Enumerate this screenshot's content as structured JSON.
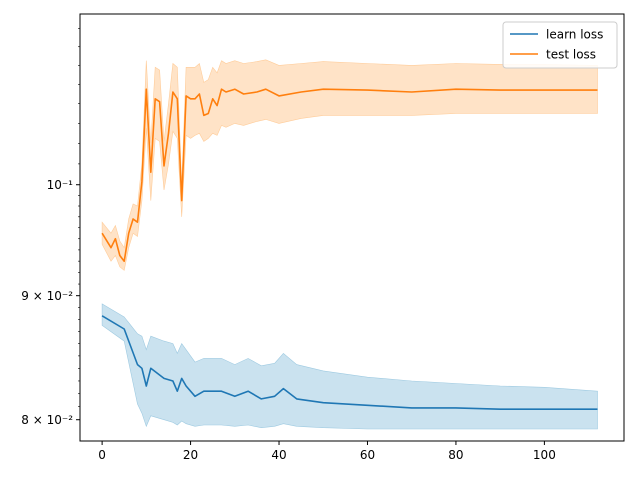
{
  "chart_data": {
    "type": "line",
    "title": "",
    "xlabel": "",
    "ylabel": "",
    "y_scale": "log",
    "xlim": [
      -5,
      118
    ],
    "ylim": [
      0.0784,
      0.1176
    ],
    "x_ticks": [
      0,
      20,
      40,
      60,
      80,
      100
    ],
    "x_tick_labels": [
      "0",
      "20",
      "40",
      "60",
      "80",
      "100"
    ],
    "y_ticks": [
      0.08,
      0.09,
      0.1
    ],
    "y_tick_labels": [
      "8 × 10⁻²",
      "9 × 10⁻²",
      "10⁻¹"
    ],
    "grid": false,
    "legend": {
      "position": "top-right",
      "entries": [
        "learn loss",
        "test loss"
      ]
    },
    "series": [
      {
        "name": "learn loss",
        "color": "#1f77b4",
        "fill": "#9ecae1",
        "x": [
          0,
          5,
          8,
          9,
          10,
          11,
          14,
          16,
          17,
          18,
          19,
          21,
          23,
          27,
          30,
          33,
          36,
          39,
          41,
          44,
          50,
          60,
          70,
          80,
          90,
          100,
          112
        ],
        "values": [
          0.0883,
          0.0872,
          0.0843,
          0.084,
          0.0826,
          0.084,
          0.0832,
          0.083,
          0.0822,
          0.0832,
          0.0826,
          0.0818,
          0.0822,
          0.0822,
          0.0818,
          0.0822,
          0.0816,
          0.0818,
          0.0824,
          0.0816,
          0.0813,
          0.0811,
          0.0809,
          0.0809,
          0.0808,
          0.0808,
          0.0808
        ],
        "lower": [
          0.0875,
          0.0862,
          0.0812,
          0.0805,
          0.0795,
          0.0803,
          0.08,
          0.0798,
          0.0796,
          0.0799,
          0.0797,
          0.0795,
          0.0796,
          0.0796,
          0.0795,
          0.0796,
          0.0794,
          0.0795,
          0.0797,
          0.0795,
          0.0794,
          0.0793,
          0.0793,
          0.0793,
          0.0793,
          0.0793,
          0.0793
        ],
        "upper": [
          0.0893,
          0.0882,
          0.0868,
          0.0866,
          0.0855,
          0.0866,
          0.0862,
          0.086,
          0.0852,
          0.086,
          0.0855,
          0.0845,
          0.0848,
          0.0848,
          0.0843,
          0.0848,
          0.0842,
          0.0844,
          0.0852,
          0.0843,
          0.0838,
          0.0833,
          0.083,
          0.0828,
          0.0826,
          0.0825,
          0.0822
        ]
      },
      {
        "name": "test loss",
        "color": "#ff7f0e",
        "fill": "#ffcc99",
        "x": [
          0,
          2,
          3,
          4,
          5,
          6,
          7,
          8,
          9,
          10,
          11,
          12,
          13,
          14,
          15,
          16,
          17,
          18,
          19,
          20,
          21,
          22,
          23,
          24,
          25,
          26,
          27,
          28,
          30,
          32,
          35,
          37,
          40,
          45,
          50,
          60,
          70,
          80,
          90,
          100,
          112
        ],
        "values": [
          0.0955,
          0.0942,
          0.095,
          0.0935,
          0.093,
          0.0955,
          0.0968,
          0.0965,
          0.1003,
          0.1095,
          0.1012,
          0.1085,
          0.1082,
          0.1018,
          0.105,
          0.1092,
          0.1085,
          0.0985,
          0.1088,
          0.1085,
          0.1085,
          0.109,
          0.1068,
          0.107,
          0.1085,
          0.1078,
          0.1095,
          0.1092,
          0.1095,
          0.109,
          0.1092,
          0.1095,
          0.1088,
          0.1092,
          0.1095,
          0.1094,
          0.1092,
          0.1095,
          0.1094,
          0.1094,
          0.1094
        ],
        "lower": [
          0.0945,
          0.093,
          0.0935,
          0.0925,
          0.0922,
          0.0942,
          0.0955,
          0.0952,
          0.0985,
          0.1055,
          0.0985,
          0.1045,
          0.1042,
          0.0995,
          0.102,
          0.1052,
          0.1045,
          0.097,
          0.1048,
          0.1045,
          0.1048,
          0.105,
          0.1042,
          0.1045,
          0.105,
          0.1048,
          0.1058,
          0.1056,
          0.106,
          0.1058,
          0.1062,
          0.1064,
          0.106,
          0.1065,
          0.1068,
          0.1068,
          0.1068,
          0.107,
          0.107,
          0.107,
          0.107
        ],
        "upper": [
          0.0965,
          0.0955,
          0.0962,
          0.0948,
          0.0942,
          0.0968,
          0.0982,
          0.098,
          0.102,
          0.1125,
          0.104,
          0.1118,
          0.1115,
          0.1042,
          0.108,
          0.1122,
          0.1118,
          0.1,
          0.1118,
          0.1118,
          0.1118,
          0.1122,
          0.1102,
          0.1105,
          0.1118,
          0.1112,
          0.1125,
          0.1122,
          0.1125,
          0.1122,
          0.1124,
          0.1126,
          0.112,
          0.1122,
          0.1124,
          0.1122,
          0.112,
          0.1122,
          0.1121,
          0.1121,
          0.112
        ]
      }
    ]
  }
}
